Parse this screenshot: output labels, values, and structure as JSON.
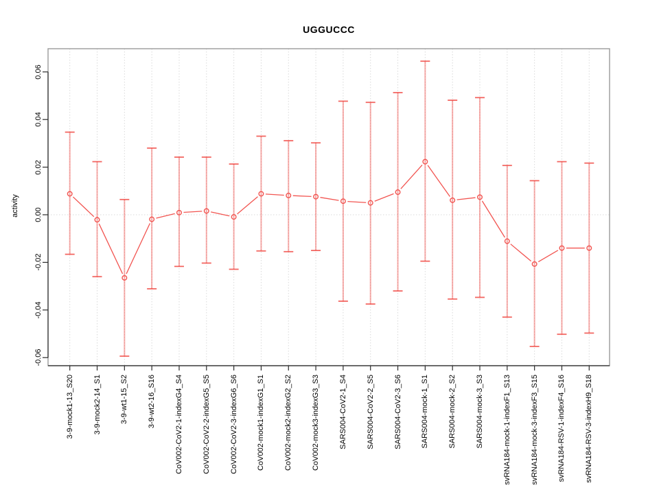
{
  "chart_data": {
    "type": "line",
    "title": "UGGUCCC",
    "xlabel": "",
    "ylabel": "activity",
    "grid": "dotted vertical line per category; dotted horizontal line at y=0",
    "legend_position": "none",
    "ylim": [
      -0.0635,
      0.0695
    ],
    "y_ticks": [
      {
        "value": 0.06,
        "label": "0.06"
      },
      {
        "value": 0.04,
        "label": "0.04"
      },
      {
        "value": 0.02,
        "label": "0.02"
      },
      {
        "value": 0.0,
        "label": "0.00"
      },
      {
        "value": -0.02,
        "label": "-0.02"
      },
      {
        "value": -0.04,
        "label": "-0.04"
      },
      {
        "value": -0.06,
        "label": "-0.06"
      }
    ],
    "categories": [
      "3-9-mock1-13_S20",
      "3-9-mock2-14_S1",
      "3-9-wt1-15_S2",
      "3-9-wt2-16_S16",
      "CoV002-CoV2-1-indexG4_S4",
      "CoV002-CoV2-2-indexG5_S5",
      "CoV002-CoV2-3-indexG6_S6",
      "CoV002-mock1-indexG1_S1",
      "CoV002-mock2-indexG2_S2",
      "CoV002-mock3-indexG3_S3",
      "SARS004-CoV2-1_S4",
      "SARS004-CoV2-2_S5",
      "SARS004-CoV2-3_S6",
      "SARS004-mock-1_S1",
      "SARS004-mock-2_S2",
      "SARS004-mock-3_S3",
      "svRNA184-mock-1-indexF1_S13",
      "svRNA184-mock-3-indexF3_S15",
      "svRNA184-RSV-1-indexF4_S16",
      "svRNA184-RSV-3-indexH9_S18"
    ],
    "series": [
      {
        "name": "activity",
        "marker": "open-circle",
        "values": [
          0.0088,
          -0.0021,
          -0.0265,
          -0.0019,
          0.0009,
          0.0016,
          -0.0009,
          0.0088,
          0.0081,
          0.0076,
          0.0057,
          0.005,
          0.0095,
          0.0223,
          0.0061,
          0.0074,
          -0.0111,
          -0.0207,
          -0.014,
          -0.014
        ],
        "upper": [
          0.0347,
          0.0223,
          0.0064,
          0.028,
          0.0242,
          0.0242,
          0.0213,
          0.033,
          0.0311,
          0.0302,
          0.0477,
          0.0472,
          0.0513,
          0.0645,
          0.0481,
          0.0492,
          0.0207,
          0.0143,
          0.0223,
          0.0217
        ],
        "lower": [
          -0.0166,
          -0.026,
          -0.0594,
          -0.0311,
          -0.0217,
          -0.0203,
          -0.0229,
          -0.0152,
          -0.0155,
          -0.015,
          -0.0363,
          -0.0375,
          -0.032,
          -0.0195,
          -0.0354,
          -0.0347,
          -0.043,
          -0.0553,
          -0.0502,
          -0.0497
        ]
      }
    ],
    "colors": {
      "point_line": "#f25450",
      "error_stem": "rgba(239,60,54,0.42)",
      "error_cap": "rgba(239,60,54,0.78)",
      "gridline": "#d9d9d9",
      "frame": "#9a9a9a",
      "axis": "#2b2b2b",
      "text": "#000000",
      "background": "#ffffff"
    }
  }
}
